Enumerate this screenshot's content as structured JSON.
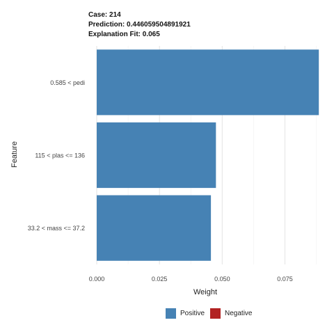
{
  "header": {
    "case": "Case: 214",
    "prediction": "Prediction: 0.446059504891921",
    "fit": "Explanation Fit: 0.065"
  },
  "chart_data": {
    "type": "bar",
    "orientation": "horizontal",
    "categories": [
      "0.585 < pedi",
      "115 < plas <= 136",
      "33.2 < mass <= 37.2"
    ],
    "values": [
      0.0885,
      0.0475,
      0.0455
    ],
    "signs": [
      "Positive",
      "Positive",
      "Positive"
    ],
    "xlabel": "Weight",
    "ylabel": "Feature",
    "xlim": [
      -0.0025,
      0.089
    ],
    "xticks": [
      0.0,
      0.025,
      0.05,
      0.075
    ],
    "xtick_labels": [
      "0.000",
      "0.025",
      "0.050",
      "0.075"
    ],
    "grid": true,
    "legend": {
      "placement": "bottom",
      "items": [
        {
          "label": "Positive",
          "color": "#4682b4"
        },
        {
          "label": "Negative",
          "color": "#b22222"
        }
      ]
    }
  }
}
